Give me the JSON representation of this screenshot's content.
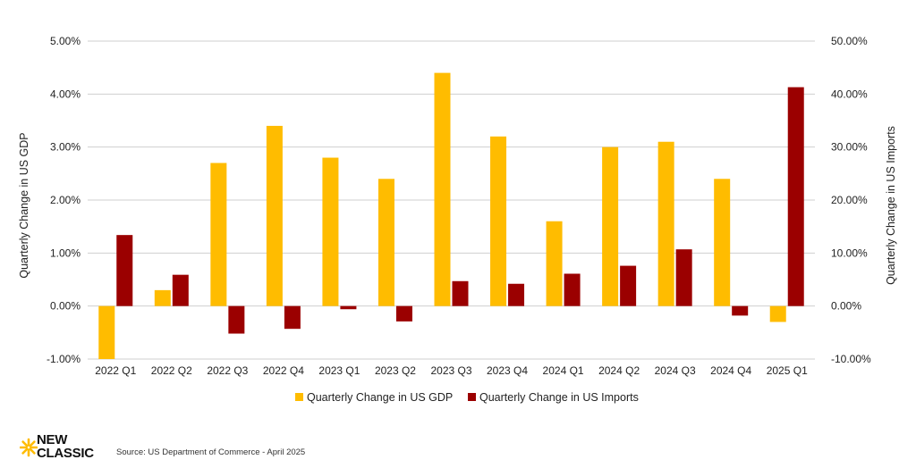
{
  "chart_data": {
    "type": "bar",
    "categories": [
      "2022 Q1",
      "2022 Q2",
      "2022 Q3",
      "2022 Q4",
      "2023 Q1",
      "2023 Q2",
      "2023 Q3",
      "2023 Q4",
      "2024 Q1",
      "2024 Q2",
      "2024 Q3",
      "2024 Q4",
      "2025 Q1"
    ],
    "series": [
      {
        "name": "Quarterly Change in US GDP",
        "axis": "left",
        "color": "#FFBC00",
        "values": [
          -1.0,
          0.3,
          2.7,
          3.4,
          2.8,
          2.4,
          4.4,
          3.2,
          1.6,
          3.0,
          3.1,
          2.4,
          -0.3
        ]
      },
      {
        "name": "Quarterly Change in US Imports",
        "axis": "right",
        "color": "#9B0000",
        "values": [
          13.4,
          5.9,
          -5.2,
          -4.3,
          -0.6,
          -2.9,
          4.7,
          4.2,
          6.1,
          7.6,
          10.7,
          -1.8,
          41.3
        ]
      }
    ],
    "ylabel": "Quarterly Change in US GDP",
    "y2label": "Quarterly Change in US Imports",
    "ylim": [
      -1,
      5
    ],
    "y2lim": [
      -10,
      50
    ],
    "yticks": [
      "5.00%",
      "4.00%",
      "3.00%",
      "2.00%",
      "1.00%",
      "0.00%",
      "-1.00%"
    ],
    "y2ticks": [
      "50.00%",
      "40.00%",
      "30.00%",
      "20.00%",
      "10.00%",
      "0.00%",
      "-10.00%"
    ],
    "grid": true,
    "legend_position": "bottom"
  },
  "brand": {
    "logo_line1": "NEW",
    "logo_line2": "CLASSIC",
    "accent_color": "#FFBC00"
  },
  "source": "Source: US Department of Commerce - April 2025"
}
